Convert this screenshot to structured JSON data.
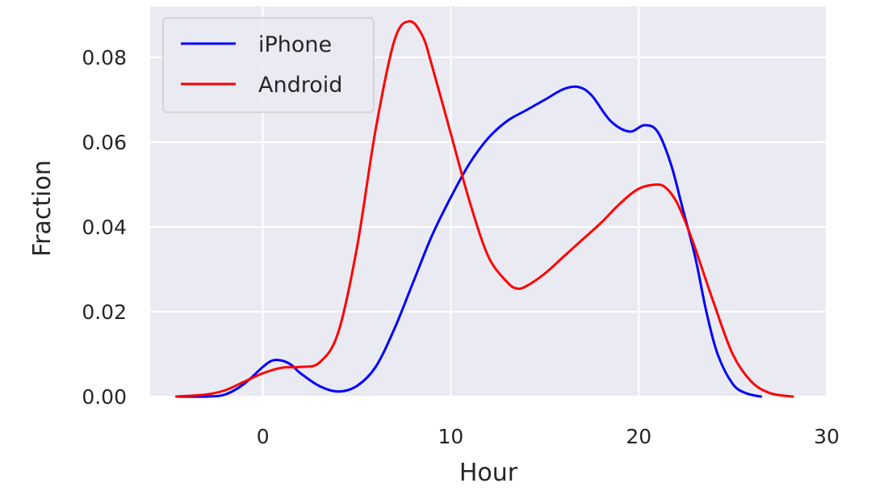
{
  "chart_data": {
    "type": "line",
    "xlabel": "Hour",
    "ylabel": "Fraction",
    "xlim": [
      -6,
      30
    ],
    "ylim": [
      0,
      0.092
    ],
    "xticks": [
      0,
      10,
      20,
      30
    ],
    "xtick_labels": [
      "0",
      "10",
      "20",
      "30"
    ],
    "yticks": [
      0,
      0.02,
      0.04,
      0.06,
      0.08
    ],
    "ytick_labels": [
      "0.00",
      "0.02",
      "0.04",
      "0.06",
      "0.08"
    ],
    "grid": true,
    "legend_position": "top-left",
    "series": [
      {
        "name": "iPhone",
        "color": "#0000ff",
        "x": [
          -4.6,
          -3,
          -2,
          -1,
          0,
          0.5,
          1,
          1.5,
          2,
          3,
          4,
          5,
          6,
          7,
          8,
          9,
          10,
          11,
          12,
          13,
          14,
          15,
          16,
          16.8,
          17.5,
          18.5,
          19.5,
          20.3,
          21,
          21.7,
          22.3,
          23,
          23.6,
          24.2,
          25,
          25.7,
          26.5
        ],
        "y": [
          0,
          0,
          0.0005,
          0.003,
          0.007,
          0.0085,
          0.0085,
          0.0075,
          0.0055,
          0.0025,
          0.0012,
          0.0025,
          0.007,
          0.016,
          0.027,
          0.038,
          0.047,
          0.055,
          0.061,
          0.065,
          0.0675,
          0.07,
          0.0725,
          0.073,
          0.071,
          0.065,
          0.0625,
          0.064,
          0.0625,
          0.055,
          0.045,
          0.033,
          0.02,
          0.01,
          0.003,
          0.0008,
          0
        ]
      },
      {
        "name": "Android",
        "color": "#ff0000",
        "x": [
          -4.6,
          -3,
          -2,
          -1,
          0,
          1,
          2,
          3,
          4,
          5,
          6,
          7,
          7.8,
          8.5,
          9,
          10,
          11,
          12,
          13,
          13.5,
          14,
          15,
          16,
          17,
          18,
          19,
          20,
          21,
          21.5,
          22,
          22.5,
          23,
          24,
          25,
          26,
          27,
          28.2
        ],
        "y": [
          0,
          0.0005,
          0.0015,
          0.0035,
          0.0055,
          0.0068,
          0.007,
          0.008,
          0.015,
          0.035,
          0.063,
          0.084,
          0.0885,
          0.085,
          0.078,
          0.062,
          0.046,
          0.033,
          0.027,
          0.0255,
          0.026,
          0.029,
          0.033,
          0.037,
          0.041,
          0.0455,
          0.049,
          0.05,
          0.049,
          0.046,
          0.041,
          0.035,
          0.022,
          0.01,
          0.0035,
          0.0008,
          0
        ]
      }
    ]
  }
}
